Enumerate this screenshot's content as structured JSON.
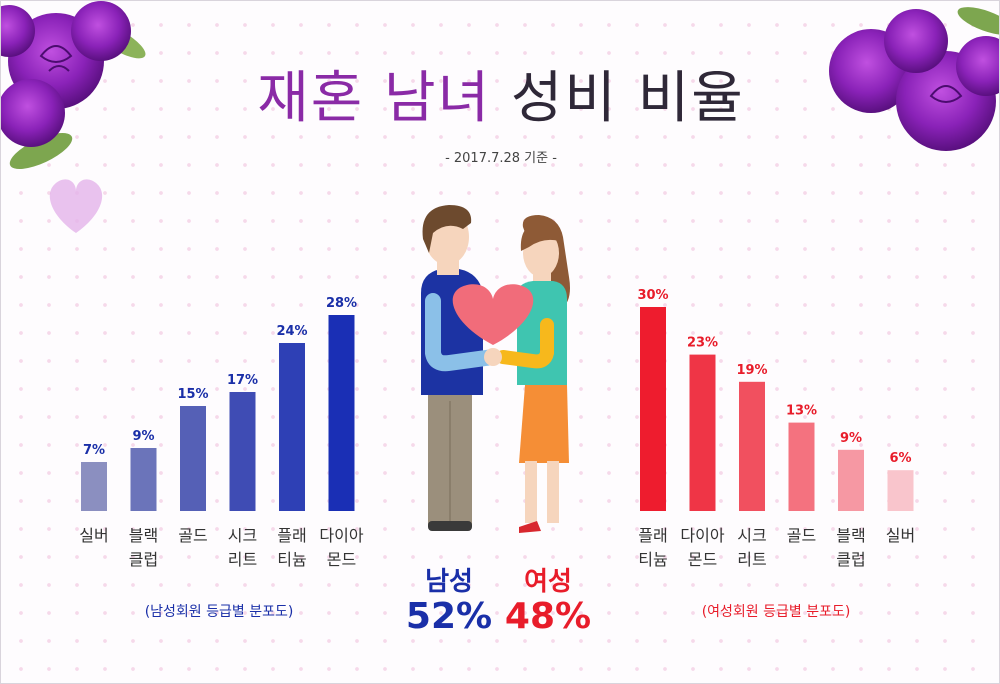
{
  "title_part1": "재혼 남녀",
  "title_part2": "성비 비율",
  "subtitle": "- 2017.7.28 기준 -",
  "chart_data": [
    {
      "type": "bar",
      "categories": [
        "실버\n",
        "블랙\n클럽",
        "골드\n",
        "시크\n리트",
        "플래\n티늄",
        "다이아\n몬드"
      ],
      "values": [
        7,
        9,
        15,
        17,
        24,
        28
      ],
      "value_labels": [
        "7%",
        "9%",
        "15%",
        "17%",
        "24%",
        "28%"
      ],
      "colors": [
        "#8b8fc0",
        "#6b74ba",
        "#5560b6",
        "#3f4cb4",
        "#2e40b5",
        "#1a2fb5"
      ],
      "caption": "(남성회원 등급별 분포도)"
    },
    {
      "type": "bar",
      "categories": [
        "플래\n티늄",
        "다이아\n몬드",
        "시크\n리트",
        "골드\n",
        "블랙\n클럽",
        "실버\n"
      ],
      "values": [
        30,
        23,
        19,
        13,
        9,
        6
      ],
      "value_labels": [
        "30%",
        "23%",
        "19%",
        "13%",
        "9%",
        "6%"
      ],
      "colors": [
        "#ee1c2e",
        "#ef3546",
        "#f1505f",
        "#f4727f",
        "#f698a3",
        "#f9c5cc"
      ],
      "caption": "(여성회원 등급별 분포도)"
    }
  ],
  "male": {
    "label": "남성",
    "value": "52%",
    "color": "#1a2fa8"
  },
  "female": {
    "label": "여성",
    "value": "48%",
    "color": "#e81c2a"
  }
}
